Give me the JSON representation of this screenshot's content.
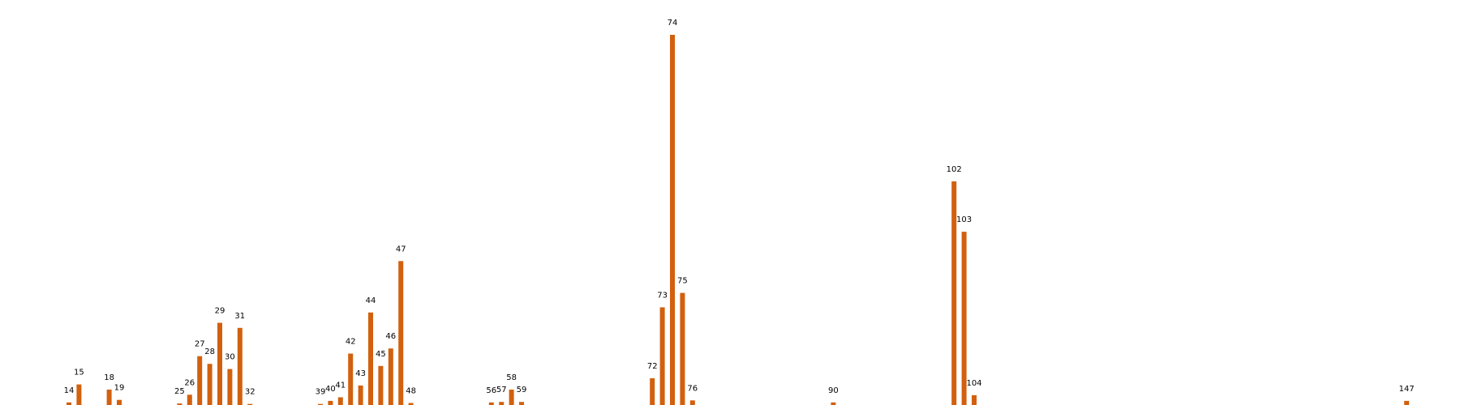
{
  "chart_data": {
    "type": "bar",
    "title": "",
    "xlabel": "",
    "ylabel": "",
    "categories": [
      "14",
      "15",
      "18",
      "19",
      "25",
      "26",
      "27",
      "28",
      "29",
      "30",
      "31",
      "32",
      "39",
      "40",
      "41",
      "42",
      "43",
      "44",
      "45",
      "46",
      "47",
      "48",
      "56",
      "57",
      "58",
      "59",
      "72",
      "73",
      "74",
      "75",
      "76",
      "90",
      "102",
      "103",
      "104",
      "147"
    ],
    "values": [
      0.5,
      4,
      3,
      1,
      0.3,
      2,
      9.5,
      8,
      16,
      7,
      15,
      0.2,
      0.2,
      0.8,
      1.5,
      10,
      3.8,
      18,
      7.6,
      11,
      28,
      0.4,
      0.5,
      0.6,
      3,
      0.6,
      5.2,
      19,
      72,
      21.8,
      0.9,
      0.5,
      43.5,
      33.7,
      1.9,
      0.8
    ],
    "ylim": [
      0,
      75
    ],
    "grid": false,
    "legend": "none",
    "bar_color": "#d2600e"
  }
}
